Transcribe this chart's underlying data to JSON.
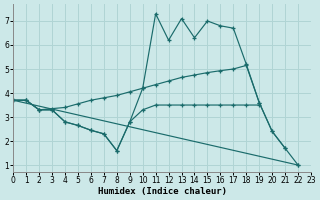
{
  "xlabel": "Humidex (Indice chaleur)",
  "background_color": "#cce8e8",
  "line_color": "#1a6b6b",
  "grid_color": "#b0d4d4",
  "xlim": [
    0,
    23
  ],
  "ylim": [
    0.7,
    7.7
  ],
  "xticks": [
    0,
    1,
    2,
    3,
    4,
    5,
    6,
    7,
    8,
    9,
    10,
    11,
    12,
    13,
    14,
    15,
    16,
    17,
    18,
    19,
    20,
    21,
    22,
    23
  ],
  "yticks": [
    1,
    2,
    3,
    4,
    5,
    6,
    7
  ],
  "line1_x": [
    0,
    1,
    2,
    3,
    4,
    5,
    6,
    7,
    8,
    9,
    10,
    11,
    12,
    13,
    14,
    15,
    16,
    17,
    18,
    19,
    20,
    21
  ],
  "line1_y": [
    3.7,
    3.7,
    3.3,
    3.3,
    2.8,
    2.65,
    2.45,
    2.3,
    1.6,
    2.8,
    4.2,
    7.3,
    6.2,
    7.1,
    6.3,
    7.0,
    6.8,
    6.7,
    5.2,
    3.6,
    2.4,
    1.7
  ],
  "line2_x": [
    0,
    1,
    2,
    3,
    4,
    5,
    6,
    7,
    8,
    9,
    10,
    11,
    12,
    13,
    14,
    15,
    16,
    17,
    18,
    19,
    20,
    21,
    22
  ],
  "line2_y": [
    3.7,
    3.7,
    3.3,
    3.35,
    3.4,
    3.55,
    3.7,
    3.8,
    3.9,
    4.05,
    4.2,
    4.35,
    4.5,
    4.65,
    4.75,
    4.85,
    4.93,
    5.0,
    5.15,
    3.6,
    2.4,
    1.7,
    1.0
  ],
  "line3_x": [
    0,
    1,
    2,
    3,
    4,
    5,
    6,
    7,
    8,
    9,
    10,
    11,
    12,
    13,
    14,
    15,
    16,
    17,
    18,
    19
  ],
  "line3_y": [
    3.7,
    3.7,
    3.3,
    3.3,
    2.8,
    2.65,
    2.45,
    2.3,
    1.6,
    2.8,
    3.3,
    3.5,
    3.5,
    3.5,
    3.5,
    3.5,
    3.5,
    3.5,
    3.5,
    3.5
  ],
  "line4_x": [
    0,
    22
  ],
  "line4_y": [
    3.7,
    1.0
  ]
}
